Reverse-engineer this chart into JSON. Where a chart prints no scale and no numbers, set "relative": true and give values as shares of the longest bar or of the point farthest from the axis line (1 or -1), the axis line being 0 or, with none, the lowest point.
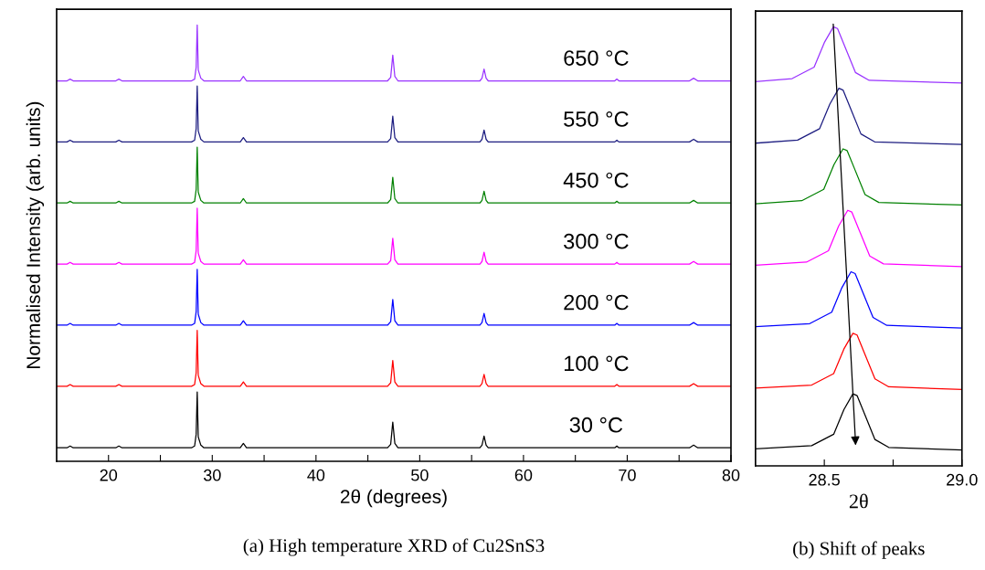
{
  "chart_data": [
    {
      "type": "line",
      "relative": true,
      "xlabel": "2θ (degrees)",
      "ylabel": "Normalised Intensity (arb. units)",
      "tick_labels": "x",
      "xlim": [
        15,
        80
      ],
      "xticks": [
        20,
        {
          "value": 25,
          "label": null
        },
        30,
        {
          "value": 35,
          "label": null
        },
        40,
        {
          "value": 45,
          "label": null
        },
        50,
        {
          "value": 55,
          "label": null
        },
        60,
        {
          "value": 65,
          "label": null
        },
        70,
        {
          "value": 75,
          "label": null
        },
        80
      ],
      "x": [
        15.0,
        16.0,
        16.3,
        16.6,
        20.7,
        21.0,
        21.3,
        28.0,
        28.3,
        28.45,
        28.55,
        28.65,
        28.9,
        29.2,
        32.7,
        33.0,
        33.3,
        46.9,
        47.2,
        47.4,
        47.6,
        47.9,
        55.8,
        56.0,
        56.2,
        56.4,
        56.6,
        68.8,
        69.0,
        69.2,
        76.0,
        76.4,
        76.8,
        80.0
      ],
      "series": [
        {
          "name": "30 °C",
          "color": "#000000",
          "values": [
            0.031,
            0.031,
            0.035,
            0.031,
            0.031,
            0.035,
            0.031,
            0.031,
            0.035,
            0.062,
            0.159,
            0.056,
            0.037,
            0.031,
            0.031,
            0.041,
            0.031,
            0.031,
            0.039,
            0.09,
            0.041,
            0.031,
            0.031,
            0.037,
            0.058,
            0.037,
            0.031,
            0.031,
            0.035,
            0.031,
            0.031,
            0.037,
            0.031,
            0.031
          ]
        },
        {
          "name": "100 °C",
          "color": "#ff0000",
          "values": [
            0.172,
            0.172,
            0.176,
            0.172,
            0.172,
            0.176,
            0.172,
            0.172,
            0.176,
            0.203,
            0.3,
            0.197,
            0.178,
            0.172,
            0.172,
            0.182,
            0.172,
            0.172,
            0.18,
            0.231,
            0.182,
            0.172,
            0.172,
            0.178,
            0.199,
            0.178,
            0.172,
            0.172,
            0.176,
            0.172,
            0.172,
            0.178,
            0.172,
            0.172
          ]
        },
        {
          "name": "200 °C",
          "color": "#0000ff",
          "values": [
            0.312,
            0.312,
            0.316,
            0.312,
            0.312,
            0.316,
            0.312,
            0.312,
            0.316,
            0.343,
            0.44,
            0.337,
            0.318,
            0.312,
            0.312,
            0.322,
            0.312,
            0.312,
            0.32,
            0.371,
            0.322,
            0.312,
            0.312,
            0.318,
            0.339,
            0.318,
            0.312,
            0.312,
            0.316,
            0.312,
            0.312,
            0.318,
            0.312,
            0.312
          ]
        },
        {
          "name": "300 °C",
          "color": "#ff00ff",
          "values": [
            0.452,
            0.452,
            0.456,
            0.452,
            0.452,
            0.456,
            0.452,
            0.452,
            0.456,
            0.483,
            0.58,
            0.477,
            0.458,
            0.452,
            0.452,
            0.462,
            0.452,
            0.452,
            0.46,
            0.511,
            0.462,
            0.452,
            0.452,
            0.458,
            0.479,
            0.458,
            0.452,
            0.452,
            0.456,
            0.452,
            0.452,
            0.458,
            0.452,
            0.452
          ]
        },
        {
          "name": "450 °C",
          "color": "#008000",
          "values": [
            0.592,
            0.592,
            0.596,
            0.592,
            0.592,
            0.596,
            0.592,
            0.592,
            0.596,
            0.623,
            0.72,
            0.617,
            0.598,
            0.592,
            0.592,
            0.602,
            0.592,
            0.592,
            0.6,
            0.651,
            0.602,
            0.592,
            0.592,
            0.598,
            0.619,
            0.598,
            0.592,
            0.592,
            0.596,
            0.592,
            0.592,
            0.598,
            0.592,
            0.592
          ]
        },
        {
          "name": "550 °C",
          "color": "#1c1c80",
          "values": [
            0.732,
            0.732,
            0.736,
            0.732,
            0.732,
            0.736,
            0.732,
            0.732,
            0.736,
            0.763,
            0.86,
            0.757,
            0.738,
            0.732,
            0.732,
            0.742,
            0.732,
            0.732,
            0.74,
            0.791,
            0.742,
            0.732,
            0.732,
            0.738,
            0.759,
            0.738,
            0.732,
            0.732,
            0.736,
            0.732,
            0.732,
            0.738,
            0.732,
            0.732
          ]
        },
        {
          "name": "650 °C",
          "color": "#9933ff",
          "values": [
            0.872,
            0.872,
            0.876,
            0.872,
            0.872,
            0.876,
            0.872,
            0.872,
            0.876,
            0.903,
            1.0,
            0.897,
            0.878,
            0.872,
            0.872,
            0.882,
            0.872,
            0.872,
            0.88,
            0.931,
            0.882,
            0.872,
            0.872,
            0.878,
            0.899,
            0.878,
            0.872,
            0.872,
            0.876,
            0.872,
            0.872,
            0.878,
            0.872,
            0.872
          ]
        }
      ],
      "annotations": [
        "(a) High temperature XRD of Cu2SnS3"
      ]
    },
    {
      "type": "line",
      "relative": true,
      "xlabel": "2θ",
      "tick_labels": "x",
      "xlim": [
        28.25,
        29.0
      ],
      "xticks": [
        28.5,
        {
          "value": 28.75,
          "label": null
        },
        {
          "value": 29.0,
          "label": "29.0"
        }
      ],
      "series": [
        {
          "color": "#000000",
          "x": [
            28.25,
            28.454,
            28.534,
            28.571,
            28.604,
            28.619,
            28.645,
            28.684,
            28.734,
            29.0
          ],
          "values": [
            0.039,
            0.046,
            0.072,
            0.128,
            0.164,
            0.16,
            0.12,
            0.06,
            0.042,
            0.036
          ]
        },
        {
          "color": "#ff0000",
          "x": [
            28.25,
            28.454,
            28.534,
            28.571,
            28.604,
            28.619,
            28.645,
            28.684,
            28.734,
            29.0
          ],
          "values": [
            0.177,
            0.184,
            0.21,
            0.266,
            0.302,
            0.298,
            0.258,
            0.198,
            0.18,
            0.174
          ]
        },
        {
          "color": "#0000ff",
          "x": [
            28.25,
            28.447,
            28.527,
            28.564,
            28.597,
            28.612,
            28.638,
            28.677,
            28.727,
            29.0
          ],
          "values": [
            0.317,
            0.324,
            0.35,
            0.406,
            0.442,
            0.438,
            0.398,
            0.338,
            0.32,
            0.314
          ]
        },
        {
          "color": "#ff00ff",
          "x": [
            28.25,
            28.435,
            28.515,
            28.552,
            28.585,
            28.6,
            28.626,
            28.665,
            28.715,
            29.0
          ],
          "values": [
            0.457,
            0.464,
            0.49,
            0.546,
            0.582,
            0.578,
            0.538,
            0.478,
            0.46,
            0.454
          ]
        },
        {
          "color": "#008000",
          "x": [
            28.25,
            28.418,
            28.498,
            28.535,
            28.568,
            28.583,
            28.609,
            28.648,
            28.698,
            29.0
          ],
          "values": [
            0.597,
            0.604,
            0.63,
            0.686,
            0.722,
            0.718,
            0.678,
            0.618,
            0.6,
            0.594
          ]
        },
        {
          "color": "#1c1c80",
          "x": [
            28.25,
            28.403,
            28.483,
            28.52,
            28.553,
            28.568,
            28.594,
            28.633,
            28.683,
            29.0
          ],
          "values": [
            0.735,
            0.742,
            0.768,
            0.824,
            0.86,
            0.856,
            0.816,
            0.756,
            0.738,
            0.732
          ]
        },
        {
          "color": "#9933ff",
          "x": [
            28.25,
            28.383,
            28.463,
            28.5,
            28.533,
            28.548,
            28.574,
            28.613,
            28.663,
            29.0
          ],
          "values": [
            0.875,
            0.882,
            0.908,
            0.964,
            1.0,
            0.996,
            0.956,
            0.896,
            0.878,
            0.872
          ]
        }
      ],
      "annotations": [
        "(b) Shift of peaks"
      ]
    }
  ]
}
